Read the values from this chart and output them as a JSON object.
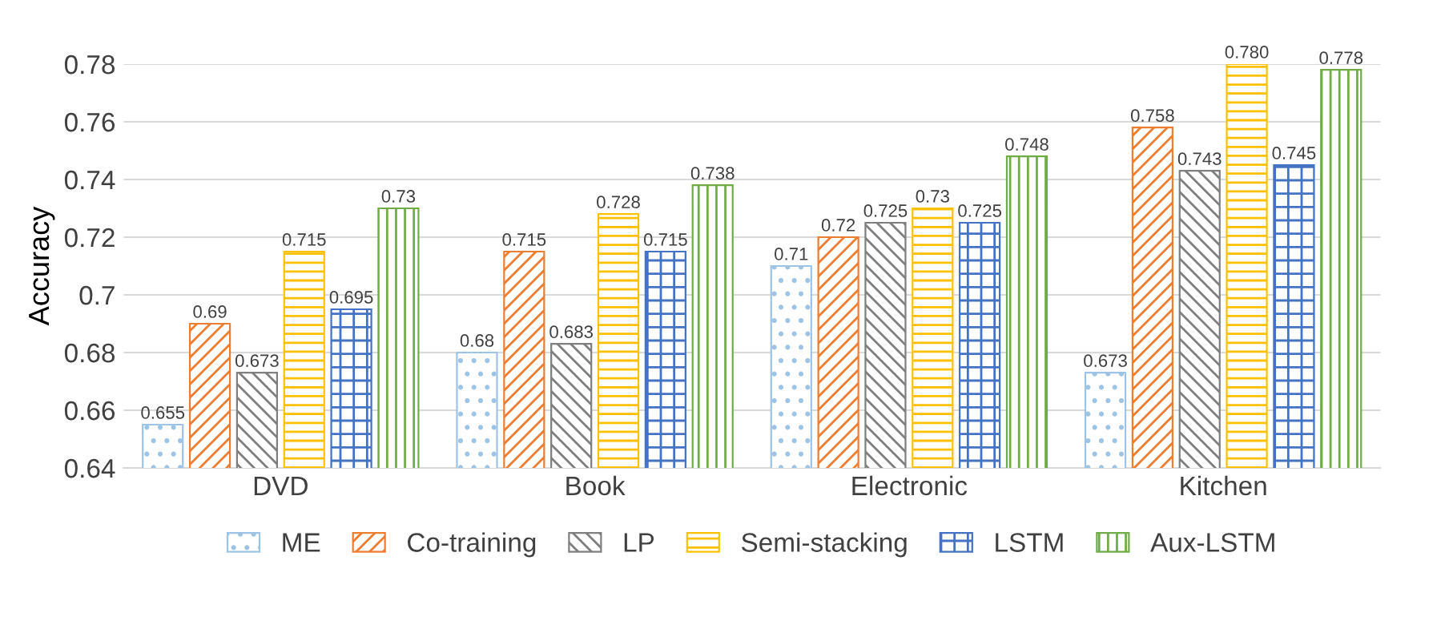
{
  "chart_data": {
    "type": "bar",
    "ylabel": "Accuracy",
    "categories": [
      "DVD",
      "Book",
      "Electronic",
      "Kitchen"
    ],
    "series": [
      {
        "name": "ME",
        "color": "#9dc3e6",
        "values": [
          0.655,
          0.68,
          0.71,
          0.673
        ],
        "value_labels": [
          "0.655",
          "0.68",
          "0.71",
          "0.673"
        ]
      },
      {
        "name": "Co-training",
        "color": "#ed7d31",
        "values": [
          0.69,
          0.715,
          0.72,
          0.758
        ],
        "value_labels": [
          "0.69",
          "0.715",
          "0.72",
          "0.758"
        ]
      },
      {
        "name": "LP",
        "color": "#7f7f7f",
        "values": [
          0.673,
          0.683,
          0.725,
          0.743
        ],
        "value_labels": [
          "0.673",
          "0.683",
          "0.725",
          "0.743"
        ]
      },
      {
        "name": "Semi-stacking",
        "color": "#ffc000",
        "values": [
          0.715,
          0.728,
          0.73,
          0.78
        ],
        "value_labels": [
          "0.715",
          "0.728",
          "0.73",
          "0.780"
        ]
      },
      {
        "name": "LSTM",
        "color": "#4472c4",
        "values": [
          0.695,
          0.715,
          0.725,
          0.745
        ],
        "value_labels": [
          "0.695",
          "0.715",
          "0.725",
          "0.745"
        ]
      },
      {
        "name": "Aux-LSTM",
        "color": "#70ad47",
        "values": [
          0.73,
          0.738,
          0.748,
          0.778
        ],
        "value_labels": [
          "0.73",
          "0.738",
          "0.748",
          "0.778"
        ]
      }
    ],
    "ylim": [
      0.64,
      0.78
    ],
    "yticks": [
      0.64,
      0.66,
      0.68,
      0.7,
      0.72,
      0.74,
      0.76,
      0.78
    ],
    "grid": "y",
    "legend": "bottom"
  }
}
